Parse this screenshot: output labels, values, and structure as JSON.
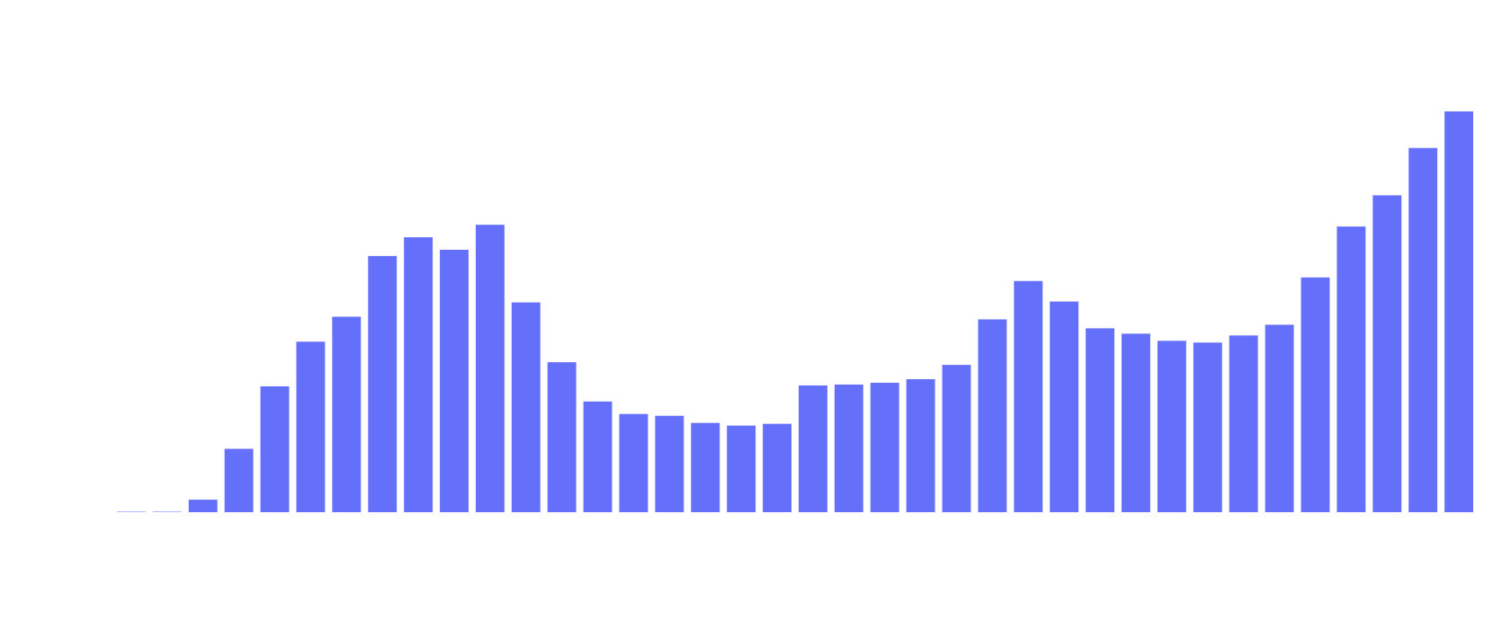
{
  "chart_data": {
    "type": "bar",
    "title": "",
    "xlabel": "",
    "ylabel": "",
    "grid": false,
    "legend": "none",
    "bar_color": "#6570fa",
    "ylim": [
      0,
      450
    ],
    "values": [
      0.5,
      0.5,
      14,
      71,
      141,
      191,
      219,
      287,
      308,
      294,
      322,
      235,
      168,
      124,
      110,
      108,
      100,
      97,
      99,
      142,
      143,
      145,
      149,
      165,
      216,
      259,
      236,
      206,
      200,
      192,
      190,
      198,
      210,
      263,
      320,
      355,
      408,
      449
    ]
  }
}
